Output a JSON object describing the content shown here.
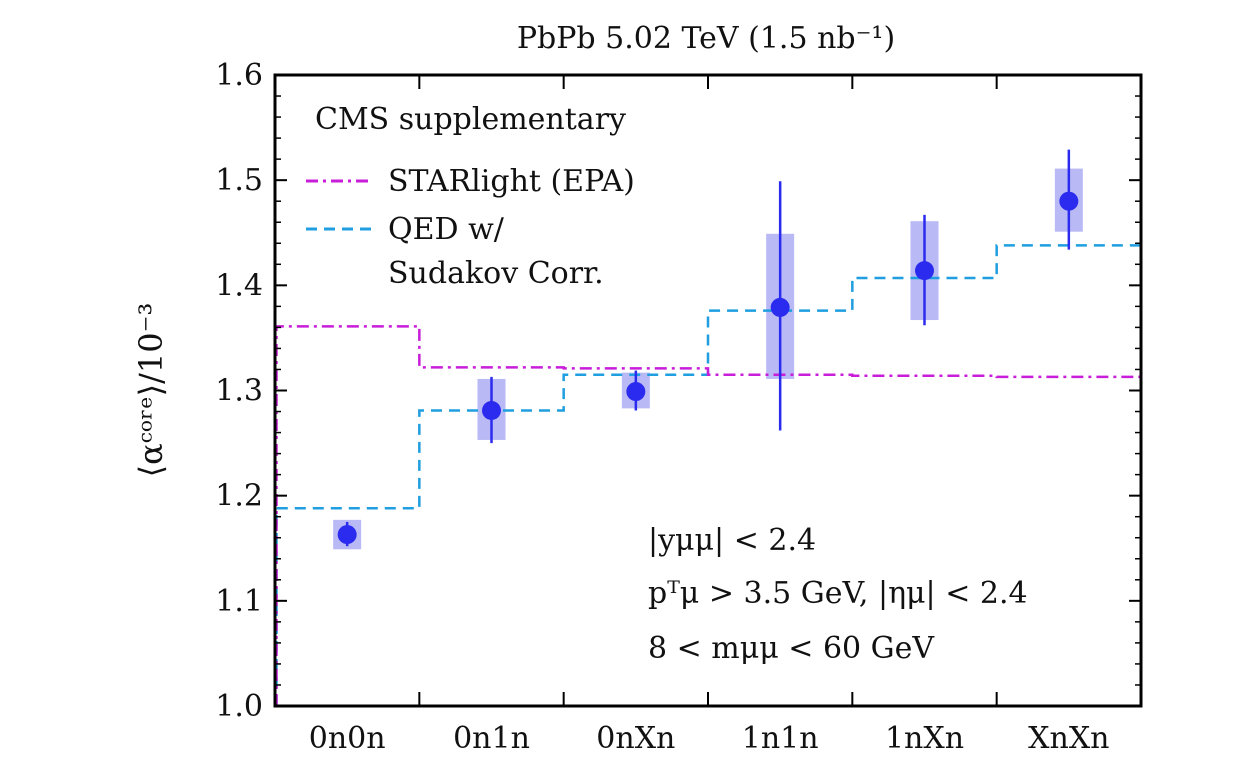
{
  "chart_data": {
    "type": "scatter",
    "title": "PbPb 5.02 TeV (1.5 nb⁻¹)",
    "ylabel": "⟨αᶜᵒʳᵉ⟩/10⁻³",
    "xlabel": "",
    "ylim": [
      1.0,
      1.6
    ],
    "yticks": [
      "1.0",
      "1.1",
      "1.2",
      "1.3",
      "1.4",
      "1.5",
      "1.6"
    ],
    "categories": [
      "0n0n",
      "0n1n",
      "0nXn",
      "1n1n",
      "1nXn",
      "XnXn"
    ],
    "annotation": "CMS supplementary",
    "legend": [
      {
        "label": "STARlight (EPA)",
        "style": "dash-dot",
        "color": "#c81dd9"
      },
      {
        "label": "QED w/",
        "label2": "Sudakov Corr.",
        "style": "dashed",
        "color": "#1f9ee0"
      }
    ],
    "cuts": [
      "|yμμ| < 2.4",
      "pᵀμ > 3.5 GeV, |ημ| < 2.4",
      "8 < mμμ < 60 GeV"
    ],
    "series": [
      {
        "name": "Data",
        "color": "#2b2bf0",
        "values": [
          1.163,
          1.281,
          1.299,
          1.379,
          1.414,
          1.48
        ],
        "stat_low": [
          1.152,
          1.25,
          1.281,
          1.262,
          1.362,
          1.434
        ],
        "stat_high": [
          1.175,
          1.313,
          1.319,
          1.499,
          1.467,
          1.529
        ],
        "sys_low": [
          1.149,
          1.253,
          1.283,
          1.311,
          1.367,
          1.451
        ],
        "sys_high": [
          1.177,
          1.311,
          1.317,
          1.449,
          1.461,
          1.511
        ]
      },
      {
        "name": "STARlight (EPA)",
        "color": "#c81dd9",
        "values": [
          1.361,
          1.322,
          1.321,
          1.315,
          1.314,
          1.313
        ]
      },
      {
        "name": "QED w/ Sudakov Corr.",
        "color": "#1f9ee0",
        "values": [
          1.188,
          1.281,
          1.315,
          1.376,
          1.407,
          1.438
        ]
      }
    ],
    "colors": {
      "data": "#2b2bf0",
      "sys_band": "#b9b9f6",
      "starlight": "#c81dd9",
      "qed": "#1f9ee0"
    }
  }
}
